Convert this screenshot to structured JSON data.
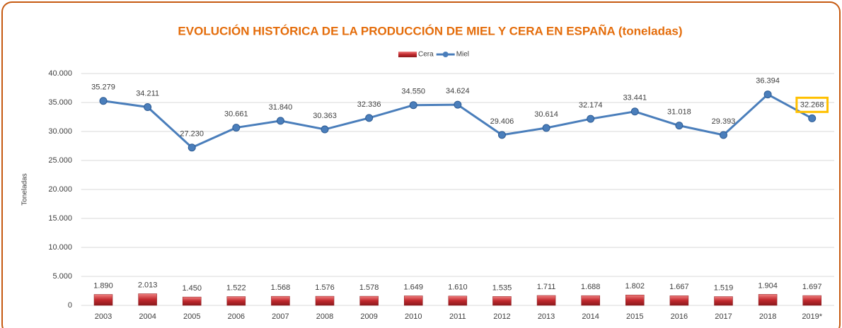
{
  "chart_data": {
    "type": "combo",
    "title": "EVOLUCIÓN HISTÓRICA DE LA PRODUCCIÓN DE MIEL Y CERA EN ESPAÑA (toneladas)",
    "y_label": "Toneladas",
    "categories": [
      "2003",
      "2004",
      "2005",
      "2006",
      "2007",
      "2008",
      "2009",
      "2010",
      "2011",
      "2012",
      "2013",
      "2014",
      "2015",
      "2016",
      "2017",
      "2018",
      "2019*"
    ],
    "series": [
      {
        "name": "Cera",
        "type": "bar",
        "color": "#c0282d",
        "values": [
          1890,
          2013,
          1450,
          1522,
          1568,
          1576,
          1578,
          1649,
          1610,
          1535,
          1711,
          1688,
          1802,
          1667,
          1519,
          1904,
          1697
        ],
        "value_labels": [
          "1.890",
          "2.013",
          "1.450",
          "1.522",
          "1.568",
          "1.576",
          "1.578",
          "1.649",
          "1.610",
          "1.535",
          "1.711",
          "1.688",
          "1.802",
          "1.667",
          "1.519",
          "1.904",
          "1.697"
        ]
      },
      {
        "name": "Miel",
        "type": "line",
        "color": "#4a7ebb",
        "values": [
          35279,
          34211,
          27230,
          30661,
          31840,
          30363,
          32336,
          34550,
          34624,
          29406,
          30614,
          32174,
          33441,
          31018,
          29393,
          36394,
          32268
        ],
        "value_labels": [
          "35.279",
          "34.211",
          "27.230",
          "30.661",
          "31.840",
          "30.363",
          "32.336",
          "34.550",
          "34.624",
          "29.406",
          "30.614",
          "32.174",
          "33.441",
          "31.018",
          "29.393",
          "36.394",
          "32.268"
        ]
      }
    ],
    "ylim": [
      0,
      40000
    ],
    "yticks": [
      0,
      {
        "value": 5000,
        "label": "5.000"
      },
      {
        "value": 10000,
        "label": "10.000"
      },
      {
        "value": 15000,
        "label": "15.000"
      },
      {
        "value": 20000,
        "label": "20.000"
      },
      {
        "value": 25000,
        "label": "25.000"
      },
      {
        "value": 30000,
        "label": "30.000"
      },
      {
        "value": 35000,
        "label": "35.000"
      },
      {
        "value": 40000,
        "label": "40.000"
      }
    ],
    "grid": true,
    "legend": "top"
  }
}
